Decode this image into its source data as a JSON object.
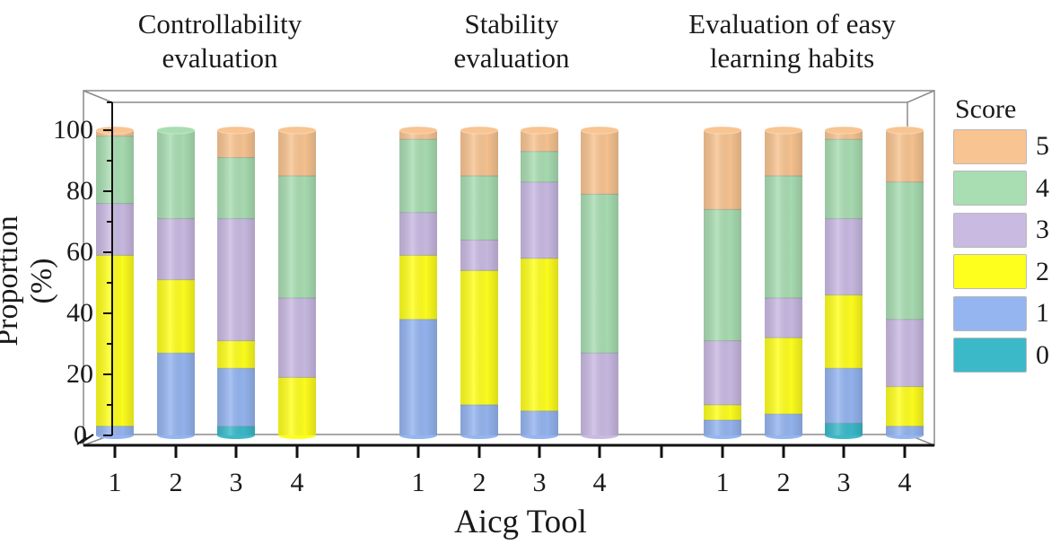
{
  "chart_data": {
    "type": "bar",
    "subtype": "stacked-3d-cylinder",
    "title": "",
    "group_titles": [
      "Controllability\nevaluation",
      "Stability\nevaluation",
      "Evaluation of easy\nlearning habits"
    ],
    "xlabel": "Aicg Tool",
    "ylabel": "Proportion (%)",
    "ylim": [
      0,
      110
    ],
    "yticks": [
      0,
      20,
      40,
      60,
      80,
      100
    ],
    "categories": [
      "1",
      "2",
      "3",
      "4"
    ],
    "legend": {
      "title": "Score",
      "position": "right",
      "entries": [
        {
          "label": "5",
          "color": "#F8C491"
        },
        {
          "label": "4",
          "color": "#A9DDB2"
        },
        {
          "label": "3",
          "color": "#C9BAE2"
        },
        {
          "label": "2",
          "color": "#FFFF1E"
        },
        {
          "label": "1",
          "color": "#95B5F0"
        },
        {
          "label": "0",
          "color": "#3CB9C9"
        }
      ]
    },
    "score_order": [
      "0",
      "1",
      "2",
      "3",
      "4",
      "5"
    ],
    "groups": [
      {
        "name": "Controllability evaluation",
        "bars": [
          {
            "tool": "1",
            "values": {
              "0": 0,
              "1": 3,
              "2": 56,
              "3": 17,
              "4": 22,
              "5": 2
            }
          },
          {
            "tool": "2",
            "values": {
              "0": 0,
              "1": 27,
              "2": 24,
              "3": 20,
              "4": 29,
              "5": 0
            }
          },
          {
            "tool": "3",
            "values": {
              "0": 3,
              "1": 19,
              "2": 9,
              "3": 40,
              "4": 20,
              "5": 9
            }
          },
          {
            "tool": "4",
            "values": {
              "0": 0,
              "1": 0,
              "2": 19,
              "3": 26,
              "4": 40,
              "5": 15
            }
          }
        ]
      },
      {
        "name": "Stability evaluation",
        "bars": [
          {
            "tool": "1",
            "values": {
              "0": 0,
              "1": 38,
              "2": 21,
              "3": 14,
              "4": 24,
              "5": 3
            }
          },
          {
            "tool": "2",
            "values": {
              "0": 0,
              "1": 10,
              "2": 44,
              "3": 10,
              "4": 21,
              "5": 15
            }
          },
          {
            "tool": "3",
            "values": {
              "0": 0,
              "1": 8,
              "2": 50,
              "3": 25,
              "4": 10,
              "5": 7
            }
          },
          {
            "tool": "4",
            "values": {
              "0": 0,
              "1": 0,
              "2": 0,
              "3": 27,
              "4": 52,
              "5": 21
            }
          }
        ]
      },
      {
        "name": "Evaluation of easy learning habits",
        "bars": [
          {
            "tool": "1",
            "values": {
              "0": 0,
              "1": 5,
              "2": 5,
              "3": 21,
              "4": 43,
              "5": 26
            }
          },
          {
            "tool": "2",
            "values": {
              "0": 0,
              "1": 7,
              "2": 25,
              "3": 13,
              "4": 40,
              "5": 15
            }
          },
          {
            "tool": "3",
            "values": {
              "0": 4,
              "1": 18,
              "2": 24,
              "3": 25,
              "4": 26,
              "5": 3
            }
          },
          {
            "tool": "4",
            "values": {
              "0": 0,
              "1": 3,
              "2": 13,
              "3": 22,
              "4": 45,
              "5": 17
            }
          }
        ]
      }
    ],
    "grid": false
  }
}
